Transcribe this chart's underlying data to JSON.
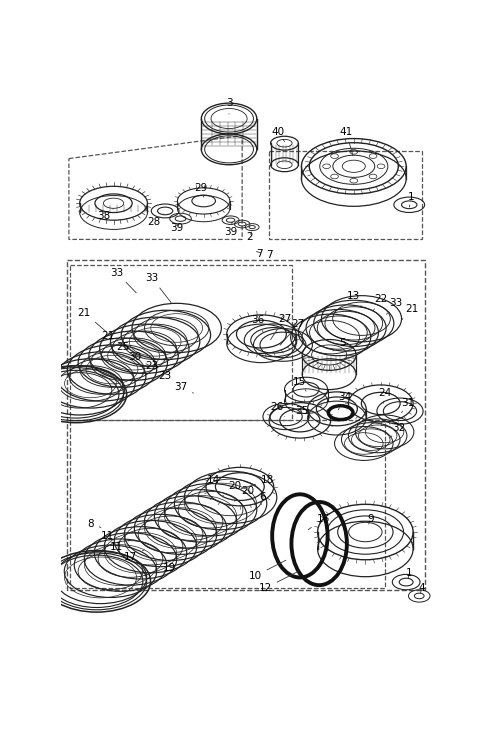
{
  "bg_color": "#ffffff",
  "line_color": "#222222",
  "fig_width": 4.8,
  "fig_height": 7.44,
  "dpi": 100
}
